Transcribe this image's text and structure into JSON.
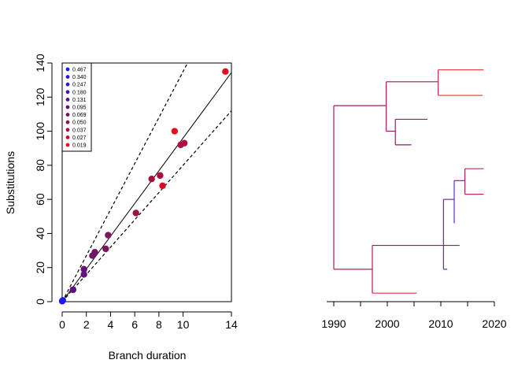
{
  "chart_data": [
    {
      "type": "scatter",
      "title": "",
      "xlabel": "Branch duration",
      "ylabel": "Substitutions",
      "xlim": [
        0,
        14
      ],
      "ylim": [
        0,
        140
      ],
      "x_ticks": [
        0,
        2,
        4,
        6,
        8,
        10,
        14
      ],
      "y_ticks": [
        0,
        20,
        40,
        60,
        80,
        100,
        120,
        140
      ],
      "points": [
        {
          "x": 0.0,
          "y": 0.3,
          "color": "#1a1aff"
        },
        {
          "x": 0.05,
          "y": 0.8,
          "color": "#1a1aff"
        },
        {
          "x": 0.9,
          "y": 7,
          "color": "#5a0e8a"
        },
        {
          "x": 1.8,
          "y": 19,
          "color": "#64107a"
        },
        {
          "x": 1.8,
          "y": 16,
          "color": "#64107a"
        },
        {
          "x": 2.5,
          "y": 27,
          "color": "#72146a"
        },
        {
          "x": 2.7,
          "y": 29,
          "color": "#72146a"
        },
        {
          "x": 3.6,
          "y": 31,
          "color": "#7a1560"
        },
        {
          "x": 3.8,
          "y": 39,
          "color": "#7a1560"
        },
        {
          "x": 6.1,
          "y": 52,
          "color": "#a1123e"
        },
        {
          "x": 7.4,
          "y": 72,
          "color": "#a8103a"
        },
        {
          "x": 8.1,
          "y": 74,
          "color": "#a8103a"
        },
        {
          "x": 8.3,
          "y": 68,
          "color": "#d60d22"
        },
        {
          "x": 9.3,
          "y": 100,
          "color": "#e60c1a"
        },
        {
          "x": 9.8,
          "y": 92,
          "color": "#b01040"
        },
        {
          "x": 10.1,
          "y": 93,
          "color": "#b01040"
        },
        {
          "x": 13.5,
          "y": 135,
          "color": "#e00d1c"
        }
      ],
      "fit_line": {
        "slope": 9.6,
        "intercept": 0
      },
      "upper_band": {
        "slope": 13.5,
        "intercept": 0
      },
      "lower_band": {
        "slope": 8.0,
        "intercept": 0
      },
      "legend": {
        "position": "top-left",
        "entries": [
          {
            "label": "0.467",
            "color": "#1a1aff"
          },
          {
            "label": "0.340",
            "color": "#2a16e0"
          },
          {
            "label": "0.247",
            "color": "#3a14c0"
          },
          {
            "label": "0.180",
            "color": "#4a12a4"
          },
          {
            "label": "0.131",
            "color": "#58108c"
          },
          {
            "label": "0.095",
            "color": "#660f78"
          },
          {
            "label": "0.069",
            "color": "#760f62"
          },
          {
            "label": "0.050",
            "color": "#880f50"
          },
          {
            "label": "0.037",
            "color": "#a20e3c"
          },
          {
            "label": "0.027",
            "color": "#c80d2a"
          },
          {
            "label": "0.019",
            "color": "#f00c14"
          }
        ]
      }
    },
    {
      "type": "tree",
      "xlabel": "",
      "xlim": [
        1990,
        2020
      ],
      "x_ticks": [
        1990,
        2000,
        2010,
        2020
      ],
      "segments": [
        {
          "x1": 1990,
          "x2": 1990,
          "y1": 19,
          "y2": 115,
          "color": "#b0205a"
        },
        {
          "x1": 1990,
          "x2": 1999.8,
          "y1": 115,
          "y2": 115,
          "color": "#9a1a6a"
        },
        {
          "x1": 1999.8,
          "x2": 1999.8,
          "y1": 100,
          "y2": 129,
          "color": "#9a1a6a"
        },
        {
          "x1": 1999.8,
          "x2": 2009.5,
          "y1": 129,
          "y2": 129,
          "color": "#a81a5a"
        },
        {
          "x1": 2009.5,
          "x2": 2009.5,
          "y1": 121,
          "y2": 136,
          "color": "#d0284a"
        },
        {
          "x1": 2009.5,
          "x2": 2018,
          "y1": 136,
          "y2": 136,
          "color": "#f04848"
        },
        {
          "x1": 2009.5,
          "x2": 2017.8,
          "y1": 121,
          "y2": 121,
          "color": "#f04848"
        },
        {
          "x1": 1999.8,
          "x2": 2001.5,
          "y1": 100,
          "y2": 100,
          "color": "#9a1a6a"
        },
        {
          "x1": 2001.5,
          "x2": 2001.5,
          "y1": 92,
          "y2": 107,
          "color": "#9a1a6a"
        },
        {
          "x1": 2001.5,
          "x2": 2007.5,
          "y1": 107,
          "y2": 107,
          "color": "#a8184e"
        },
        {
          "x1": 2001.5,
          "x2": 2004.5,
          "y1": 92,
          "y2": 92,
          "color": "#9a1a6a"
        },
        {
          "x1": 1990,
          "x2": 1997.2,
          "y1": 19,
          "y2": 19,
          "color": "#b0205a"
        },
        {
          "x1": 1997.2,
          "x2": 1997.2,
          "y1": 5,
          "y2": 33,
          "color": "#b0205a"
        },
        {
          "x1": 1997.2,
          "x2": 2005.5,
          "y1": 5,
          "y2": 5,
          "color": "#e03040"
        },
        {
          "x1": 1997.2,
          "x2": 2010.5,
          "y1": 33,
          "y2": 33,
          "color": "#9a1a6a"
        },
        {
          "x1": 2010.5,
          "x2": 2010.5,
          "y1": 19,
          "y2": 60,
          "color": "#6a2ab0"
        },
        {
          "x1": 2010.5,
          "x2": 2013.5,
          "y1": 33,
          "y2": 33,
          "color": "#9a1a6a"
        },
        {
          "x1": 2010.5,
          "x2": 2011.2,
          "y1": 19,
          "y2": 19,
          "color": "#5a2ac0"
        },
        {
          "x1": 2010.5,
          "x2": 2012.5,
          "y1": 60,
          "y2": 60,
          "color": "#7a2aa0"
        },
        {
          "x1": 2012.5,
          "x2": 2012.5,
          "y1": 46,
          "y2": 71,
          "color": "#5a2ad0"
        },
        {
          "x1": 2012.5,
          "x2": 2014.5,
          "y1": 71,
          "y2": 71,
          "color": "#8a2090"
        },
        {
          "x1": 2014.5,
          "x2": 2014.5,
          "y1": 63,
          "y2": 78,
          "color": "#a02070"
        },
        {
          "x1": 2014.5,
          "x2": 2018,
          "y1": 78,
          "y2": 78,
          "color": "#c02860"
        },
        {
          "x1": 2014.5,
          "x2": 2018,
          "y1": 63,
          "y2": 63,
          "color": "#c02860"
        }
      ]
    }
  ]
}
